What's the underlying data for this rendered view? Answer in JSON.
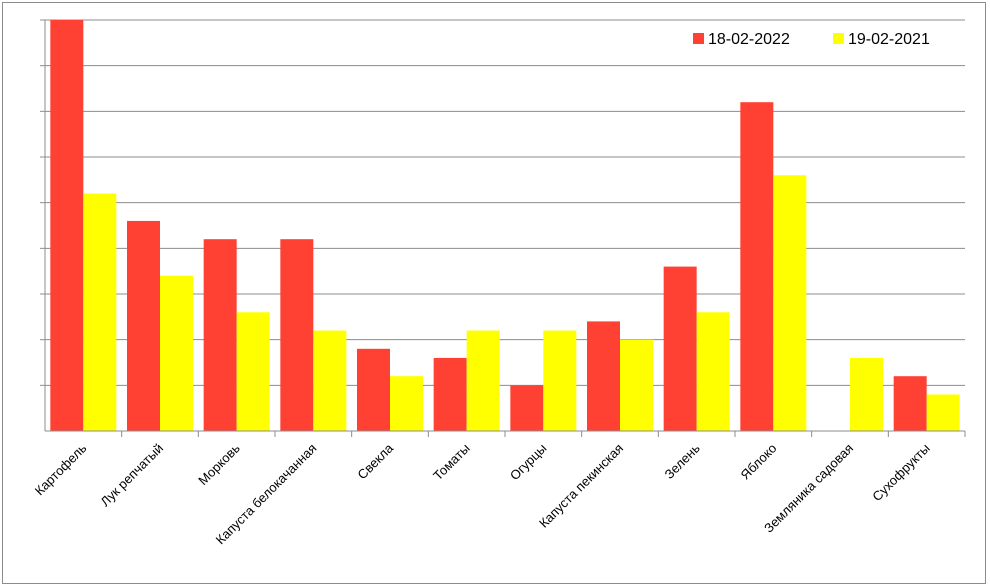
{
  "chart_data": {
    "type": "bar",
    "title": "",
    "xlabel": "",
    "ylabel": "",
    "ylim": [
      0,
      9
    ],
    "gridlines": 9,
    "grid": true,
    "legend": "top-right",
    "categories": [
      "Картофель",
      "Лук репчатый",
      "Морковь",
      "Капуста белокачанная",
      "Свекла",
      "Томаты",
      "Огурцы",
      "Капуста пекинская",
      "Зелень",
      "Яблоко",
      "Земляника садовая",
      "Сухофрукты"
    ],
    "series": [
      {
        "name": "18-02-2022",
        "color": "#ff4133",
        "values": [
          9.0,
          4.6,
          4.2,
          4.2,
          1.8,
          1.6,
          1.0,
          2.4,
          3.6,
          7.2,
          0,
          1.2
        ]
      },
      {
        "name": "19-02-2021",
        "color": "#ffff00",
        "values": [
          5.2,
          3.4,
          2.6,
          2.2,
          1.2,
          2.2,
          2.2,
          2.0,
          2.6,
          5.6,
          1.6,
          0.8
        ]
      }
    ]
  }
}
